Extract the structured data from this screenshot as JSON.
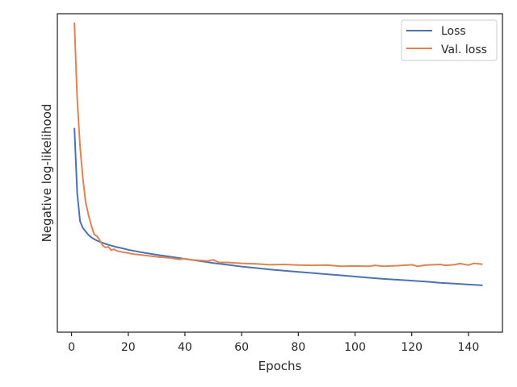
{
  "chart_data": {
    "type": "line",
    "title": "",
    "xlabel": "Epochs",
    "ylabel": "Negative log-likelihood",
    "xlim": [
      -5,
      152
    ],
    "xticks": [
      0,
      20,
      40,
      60,
      80,
      100,
      120,
      140
    ],
    "ylim": [
      0,
      1
    ],
    "yticks_shown": false,
    "grid": false,
    "legend_position": "top-right",
    "series": [
      {
        "name": "Loss",
        "color": "#4c72b0",
        "x": [
          1,
          2,
          3,
          4,
          5,
          6,
          7,
          8,
          9,
          10,
          12,
          14,
          16,
          18,
          20,
          22,
          25,
          30,
          35,
          40,
          45,
          50,
          55,
          60,
          65,
          70,
          75,
          80,
          85,
          90,
          95,
          100,
          105,
          110,
          115,
          120,
          125,
          130,
          135,
          140,
          145
        ],
        "y": [
          0.642,
          0.42,
          0.325,
          0.302,
          0.29,
          0.278,
          0.27,
          0.264,
          0.259,
          0.255,
          0.248,
          0.242,
          0.237,
          0.233,
          0.228,
          0.224,
          0.219,
          0.211,
          0.204,
          0.197,
          0.19,
          0.183,
          0.177,
          0.171,
          0.166,
          0.161,
          0.157,
          0.153,
          0.149,
          0.145,
          0.141,
          0.137,
          0.133,
          0.129,
          0.126,
          0.123,
          0.12,
          0.116,
          0.113,
          0.11,
          0.107
        ]
      },
      {
        "name": "Val. loss",
        "color": "#dd8452",
        "x": [
          1,
          2,
          3,
          4,
          5,
          6,
          7,
          8,
          9,
          10,
          11,
          12,
          13,
          14,
          15,
          16,
          18,
          20,
          22,
          25,
          30,
          35,
          38,
          40,
          42,
          45,
          48,
          50,
          52,
          55,
          60,
          65,
          70,
          75,
          80,
          85,
          90,
          95,
          100,
          105,
          107,
          110,
          115,
          120,
          122,
          125,
          130,
          132,
          135,
          137,
          140,
          142,
          145
        ],
        "y": [
          1.0,
          0.74,
          0.58,
          0.47,
          0.39,
          0.345,
          0.31,
          0.28,
          0.274,
          0.26,
          0.242,
          0.236,
          0.238,
          0.226,
          0.23,
          0.224,
          0.22,
          0.217,
          0.213,
          0.21,
          0.204,
          0.2,
          0.195,
          0.198,
          0.194,
          0.192,
          0.19,
          0.194,
          0.185,
          0.185,
          0.182,
          0.18,
          0.177,
          0.178,
          0.176,
          0.175,
          0.176,
          0.172,
          0.173,
          0.172,
          0.175,
          0.172,
          0.174,
          0.177,
          0.172,
          0.176,
          0.178,
          0.175,
          0.177,
          0.181,
          0.176,
          0.182,
          0.179
        ]
      }
    ]
  }
}
